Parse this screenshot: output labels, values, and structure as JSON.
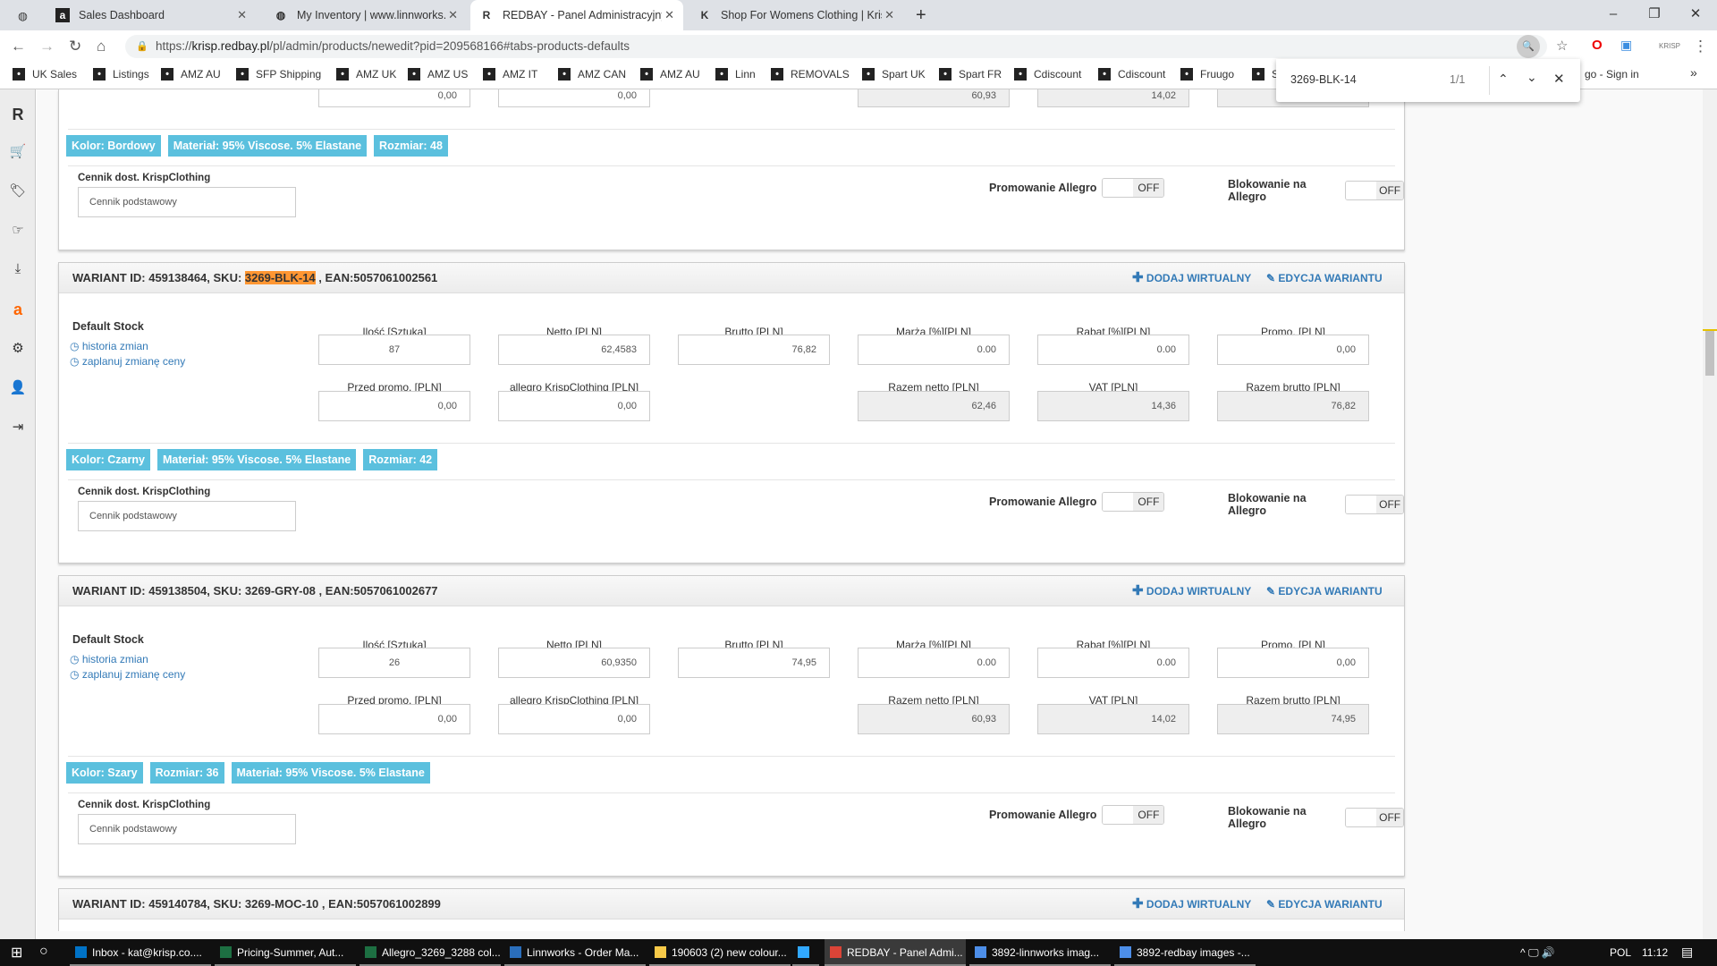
{
  "browser": {
    "tabs": [
      {
        "title": "Sales Dashboard",
        "icon": "amazon-icon"
      },
      {
        "title": "My Inventory | www.linnworks.ne",
        "icon": "linnworks-icon"
      },
      {
        "title": "REDBAY - Panel Administracyjny",
        "icon": "redbay-icon",
        "active": true
      },
      {
        "title": "Shop For Womens Clothing | Kris",
        "icon": "krisp-icon"
      }
    ],
    "url_prefix": "https://",
    "url_host": "krisp.redbay.pl",
    "url_path": "/pl/admin/products/newedit?pid=209568166#tabs-products-defaults",
    "bookmarks": [
      "UK Sales",
      "Listings",
      "AMZ AU",
      "SFP Shipping",
      "AMZ UK",
      "AMZ US",
      "AMZ IT",
      "AMZ CAN",
      "AMZ AU",
      "Linn",
      "REMOVALS",
      "Spart UK",
      "Spart FR",
      "Cdiscount",
      "Cdiscount",
      "Fruugo",
      "S"
    ],
    "bookmark_tail": "go - Sign in",
    "find": {
      "query": "3269-BLK-14",
      "count": "1/1"
    }
  },
  "labels": {
    "qty": "Ilość [Sztuka]",
    "netto": "Netto [PLN]",
    "brutto": "Brutto [PLN]",
    "marza": "Marża [%][PLN]",
    "rabat": "Rabat [%][PLN]",
    "promo": "Promo. [PLN]",
    "przed": "Przed promo. [PLN]",
    "allegro": "allegro KrispClothing [PLN]",
    "razem_netto": "Razem netto [PLN]",
    "vat": "VAT [PLN]",
    "razem_brutto": "Razem brutto [PLN]",
    "default_stock": "Default Stock",
    "history": "historia zmian",
    "schedule": "zaplanuj zmianę ceny",
    "cennik_label": "Cennik dost. KrispClothing",
    "cennik_value": "Cennik podstawowy",
    "promo_allegro": "Promowanie Allegro",
    "block_allegro": "Blokowanie na Allegro",
    "off": "OFF",
    "add_virtual": "DODAJ WIRTUALNY",
    "edit_variant": "EDYCJA WARIANTU"
  },
  "top_partial": {
    "values": {
      "przed": "0,00",
      "allegro": "0,00",
      "razem_netto": "60,93",
      "vat": "14,02"
    },
    "tags": [
      "Kolor: Bordowy",
      "Materiał: 95% Viscose. 5% Elastane",
      "Rozmiar: 48"
    ]
  },
  "variants": [
    {
      "header_pre": "WARIANT ID: 459138464, SKU: ",
      "sku": "3269-BLK-14",
      "header_post": " , EAN:5057061002561",
      "highlight": true,
      "values": {
        "qty": "87",
        "netto": "62,4583",
        "brutto": "76,82",
        "marza": "0.00",
        "rabat": "0.00",
        "promo": "0,00",
        "przed": "0,00",
        "allegro": "0,00",
        "razem_netto": "62,46",
        "vat": "14,36",
        "razem_brutto": "76,82"
      },
      "tags": [
        "Kolor: Czarny",
        "Materiał: 95% Viscose. 5% Elastane",
        "Rozmiar: 42"
      ]
    },
    {
      "header_pre": "WARIANT ID: 459138504, SKU: ",
      "sku": "3269-GRY-08",
      "header_post": " , EAN:5057061002677",
      "values": {
        "qty": "26",
        "netto": "60,9350",
        "brutto": "74,95",
        "marza": "0.00",
        "rabat": "0.00",
        "promo": "0,00",
        "przed": "0,00",
        "allegro": "0,00",
        "razem_netto": "60,93",
        "vat": "14,02",
        "razem_brutto": "74,95"
      },
      "tags": [
        "Kolor: Szary",
        "Rozmiar: 36",
        "Materiał: 95% Viscose. 5% Elastane"
      ]
    },
    {
      "header_pre": "WARIANT ID: 459140784, SKU: ",
      "sku": "3269-MOC-10",
      "header_post": " , EAN:5057061002899"
    }
  ],
  "taskbar": {
    "items": [
      "Inbox - kat@krisp.co....",
      "Pricing-Summer, Aut...",
      "Allegro_3269_3288 col...",
      "Linnworks - Order Ma...",
      "190603 (2) new colour...",
      "",
      "REDBAY - Panel Admi...",
      "3892-linnworks imag...",
      "3892-redbay images -..."
    ],
    "lang": "POL",
    "time": "11:12"
  },
  "colors": {
    "accent": "#337ab7",
    "tag": "#5bc0de",
    "highlight": "#ff9632"
  }
}
